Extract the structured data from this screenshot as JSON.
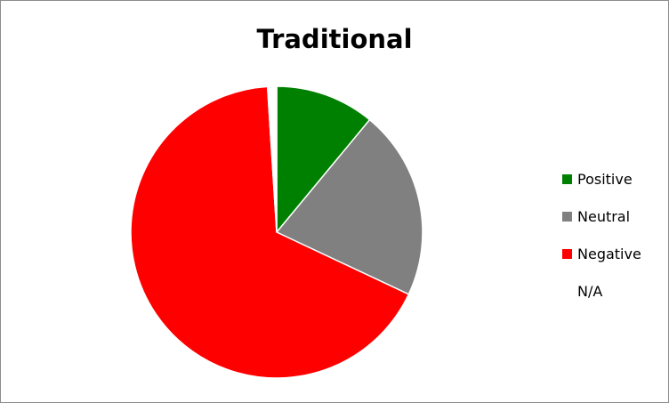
{
  "chart_data": {
    "type": "pie",
    "title": "Traditional",
    "categories": [
      "Positive",
      "Neutral",
      "Negative",
      "N/A"
    ],
    "values": [
      11,
      21,
      67,
      1
    ],
    "colors": [
      "#008000",
      "#808080",
      "#ff0000",
      "#ffffff"
    ],
    "start_angle_deg": 0,
    "direction": "clockwise",
    "legend_position": "right",
    "slice_border_color": "#ffffff"
  }
}
